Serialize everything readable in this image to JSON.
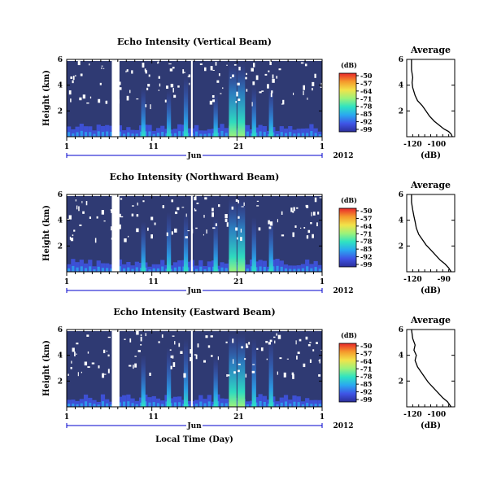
{
  "chart_data": [
    {
      "type": "heatmap",
      "title": "Echo Intensity (Vertical Beam)",
      "ylabel": "Height (km)",
      "y_ticks": [
        2,
        4,
        6
      ],
      "ylim": [
        0,
        6
      ],
      "x_ticks": [
        "1",
        "11",
        "21",
        "1"
      ],
      "x_month_label": "Jun",
      "year_label": "2012",
      "colorbar": {
        "unit_label": "(dB)",
        "ticks": [
          -50,
          -57,
          -64,
          -71,
          -78,
          -85,
          -92,
          -99
        ],
        "display_ticks": [
          "-50",
          "-57",
          "-64",
          "-71",
          "-78",
          "-85",
          "-92",
          "-99"
        ]
      },
      "data_gaps_days": [
        [
          5.3,
          6.2
        ],
        [
          14.6,
          14.8
        ]
      ],
      "enhanced_days": [
        9,
        12,
        14,
        17.5,
        19.5,
        20.5,
        22,
        24
      ],
      "profile": {
        "title": "Average",
        "xlabel": "(dB)",
        "x_ticks": [
          "-120",
          "-100"
        ],
        "xlim": [
          -125,
          -85
        ],
        "y_ticks": [
          2,
          4,
          6
        ],
        "ylim": [
          0,
          6
        ],
        "points": [
          [
            -121,
            6.0
          ],
          [
            -121,
            5.2
          ],
          [
            -120,
            4.6
          ],
          [
            -120.5,
            4.2
          ],
          [
            -120,
            3.8
          ],
          [
            -118,
            3.2
          ],
          [
            -116,
            2.8
          ],
          [
            -112,
            2.4
          ],
          [
            -109,
            2.0
          ],
          [
            -106,
            1.6
          ],
          [
            -102,
            1.2
          ],
          [
            -98,
            0.9
          ],
          [
            -94,
            0.6
          ],
          [
            -90,
            0.4
          ],
          [
            -88,
            0.2
          ],
          [
            -87,
            0.0
          ]
        ]
      }
    },
    {
      "type": "heatmap",
      "title": "Echo Intensity (Northward Beam)",
      "ylabel": "Height (km)",
      "y_ticks": [
        2,
        4,
        6
      ],
      "ylim": [
        0,
        6
      ],
      "x_ticks": [
        "1",
        "11",
        "21",
        "1"
      ],
      "x_month_label": "Jun",
      "year_label": "2012",
      "colorbar": {
        "unit_label": "(dB)",
        "ticks": [
          -50,
          -57,
          -64,
          -71,
          -78,
          -85,
          -92,
          -99
        ],
        "display_ticks": [
          "-50",
          "-57",
          "-64",
          "-71",
          "-78",
          "-85",
          "-92",
          "-99"
        ]
      },
      "data_gaps_days": [
        [
          5.3,
          6.2
        ],
        [
          14.6,
          14.8
        ]
      ],
      "enhanced_days": [
        9,
        12,
        14,
        17.5,
        19.5,
        20.5,
        22,
        24
      ],
      "profile": {
        "title": "Average",
        "xlabel": "(dB)",
        "x_ticks": [
          "-120",
          "-90"
        ],
        "xlim": [
          -125,
          -85
        ],
        "y_ticks": [
          2,
          4,
          6
        ],
        "ylim": [
          0,
          6
        ],
        "points": [
          [
            -121,
            6.0
          ],
          [
            -121,
            5.4
          ],
          [
            -120,
            4.8
          ],
          [
            -119,
            4.3
          ],
          [
            -118,
            3.9
          ],
          [
            -117,
            3.4
          ],
          [
            -115,
            2.9
          ],
          [
            -112,
            2.5
          ],
          [
            -109,
            2.1
          ],
          [
            -105,
            1.7
          ],
          [
            -101,
            1.3
          ],
          [
            -97,
            0.9
          ],
          [
            -93,
            0.6
          ],
          [
            -90,
            0.3
          ],
          [
            -88,
            0.0
          ]
        ]
      }
    },
    {
      "type": "heatmap",
      "title": "Echo Intensity (Eastward Beam)",
      "xlabel": "Local Time (Day)",
      "ylabel": "Height (km)",
      "y_ticks": [
        2,
        4,
        6
      ],
      "ylim": [
        0,
        6
      ],
      "x_ticks": [
        "1",
        "11",
        "21",
        "1"
      ],
      "x_month_label": "Jun",
      "year_label": "2012",
      "colorbar": {
        "unit_label": "(dB)",
        "ticks": [
          -50,
          -57,
          -64,
          -71,
          -78,
          -85,
          -92,
          -99
        ],
        "display_ticks": [
          "-50",
          "-57",
          "-64",
          "-71",
          "-78",
          "-85",
          "-92",
          "-99"
        ]
      },
      "data_gaps_days": [
        [
          5.3,
          6.2
        ],
        [
          14.6,
          14.8
        ]
      ],
      "enhanced_days": [
        9,
        12,
        14,
        17.5,
        19.5,
        20.5,
        22,
        24
      ],
      "profile": {
        "title": "Average",
        "xlabel": "(dB)",
        "x_ticks": [
          "-120",
          "-100"
        ],
        "xlim": [
          -125,
          -85
        ],
        "y_ticks": [
          2,
          4,
          6
        ],
        "ylim": [
          0,
          6
        ],
        "points": [
          [
            -121,
            6.0
          ],
          [
            -120,
            5.3
          ],
          [
            -118,
            4.8
          ],
          [
            -119,
            4.4
          ],
          [
            -117,
            4.0
          ],
          [
            -118,
            3.6
          ],
          [
            -116,
            3.1
          ],
          [
            -113,
            2.7
          ],
          [
            -110,
            2.3
          ],
          [
            -107,
            1.9
          ],
          [
            -103,
            1.5
          ],
          [
            -99,
            1.1
          ],
          [
            -95,
            0.7
          ],
          [
            -91,
            0.4
          ],
          [
            -88,
            0.0
          ]
        ]
      }
    }
  ],
  "colors": {
    "background": "#2f3a73",
    "colormap": [
      "#e8262a",
      "#f59a2c",
      "#f2e34a",
      "#9cf27a",
      "#2fe3c2",
      "#2aa8f0",
      "#3f55e6",
      "#2b2e9a"
    ]
  }
}
